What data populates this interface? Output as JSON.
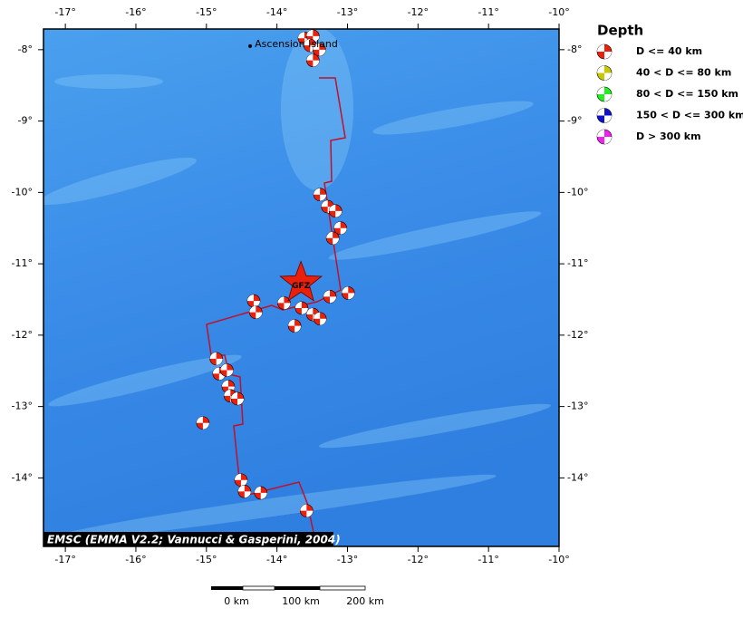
{
  "map": {
    "lonlim": [
      -17.31,
      -10
    ],
    "latlim": [
      -14.96,
      -7.71
    ],
    "lon_ticks": [
      {
        "value": -17,
        "label": "-17°"
      },
      {
        "value": -16,
        "label": "-16°"
      },
      {
        "value": -15,
        "label": "-15°"
      },
      {
        "value": -14,
        "label": "-14°"
      },
      {
        "value": -13,
        "label": "-13°"
      },
      {
        "value": -12,
        "label": "-12°"
      },
      {
        "value": -11,
        "label": "-11°"
      },
      {
        "value": -10,
        "label": "-10°"
      }
    ],
    "lat_ticks": [
      {
        "value": -8,
        "label": "-8°"
      },
      {
        "value": -9,
        "label": "-9°"
      },
      {
        "value": -10,
        "label": "-10°"
      },
      {
        "value": -11,
        "label": "-11°"
      },
      {
        "value": -12,
        "label": "-12°"
      },
      {
        "value": -13,
        "label": "-13°"
      },
      {
        "value": -14,
        "label": "-14°"
      }
    ],
    "place": {
      "label": "Ascension Island",
      "lon": -14.38,
      "lat": -7.95
    },
    "epicenter": {
      "label": "GFZ",
      "lon": -13.66,
      "lat": -11.27
    },
    "events": [
      {
        "lon": -13.61,
        "lat": -7.84
      },
      {
        "lon": -13.49,
        "lat": -7.81
      },
      {
        "lon": -13.53,
        "lat": -7.94
      },
      {
        "lon": -13.4,
        "lat": -8.0
      },
      {
        "lon": -13.49,
        "lat": -8.15
      },
      {
        "lon": -13.39,
        "lat": -10.03
      },
      {
        "lon": -13.28,
        "lat": -10.2
      },
      {
        "lon": -13.17,
        "lat": -10.26
      },
      {
        "lon": -13.1,
        "lat": -10.5
      },
      {
        "lon": -13.21,
        "lat": -10.64
      },
      {
        "lon": -14.33,
        "lat": -11.52
      },
      {
        "lon": -14.3,
        "lat": -11.68
      },
      {
        "lon": -13.9,
        "lat": -11.55
      },
      {
        "lon": -13.65,
        "lat": -11.62
      },
      {
        "lon": -13.49,
        "lat": -11.71
      },
      {
        "lon": -13.39,
        "lat": -11.77
      },
      {
        "lon": -13.25,
        "lat": -11.46
      },
      {
        "lon": -12.99,
        "lat": -11.41
      },
      {
        "lon": -13.75,
        "lat": -11.87
      },
      {
        "lon": -14.86,
        "lat": -12.33
      },
      {
        "lon": -14.82,
        "lat": -12.54
      },
      {
        "lon": -14.71,
        "lat": -12.49
      },
      {
        "lon": -14.69,
        "lat": -12.72
      },
      {
        "lon": -14.66,
        "lat": -12.85
      },
      {
        "lon": -14.56,
        "lat": -12.89
      },
      {
        "lon": -15.05,
        "lat": -13.23
      },
      {
        "lon": -14.51,
        "lat": -14.03
      },
      {
        "lon": -14.46,
        "lat": -14.19
      },
      {
        "lon": -14.23,
        "lat": -14.21
      },
      {
        "lon": -13.58,
        "lat": -14.46
      }
    ],
    "event_color": "#e8200c",
    "credit": "EMSC (EMMA V2.2; Vannucci & Gasperini, 2004)"
  },
  "legend": {
    "title": "Depth",
    "items": [
      {
        "label": "D <= 40 km",
        "color": "#e8200c"
      },
      {
        "label": "40 < D <= 80 km",
        "color": "#c8c800"
      },
      {
        "label": "80 < D <= 150 km",
        "color": "#22ee22"
      },
      {
        "label": "150 < D <= 300 km",
        "color": "#1010d0"
      },
      {
        "label": "D > 300 km",
        "color": "#ee22ee"
      }
    ]
  },
  "scale_bar": {
    "labels": [
      "0 km",
      "100 km",
      "200 km"
    ]
  }
}
